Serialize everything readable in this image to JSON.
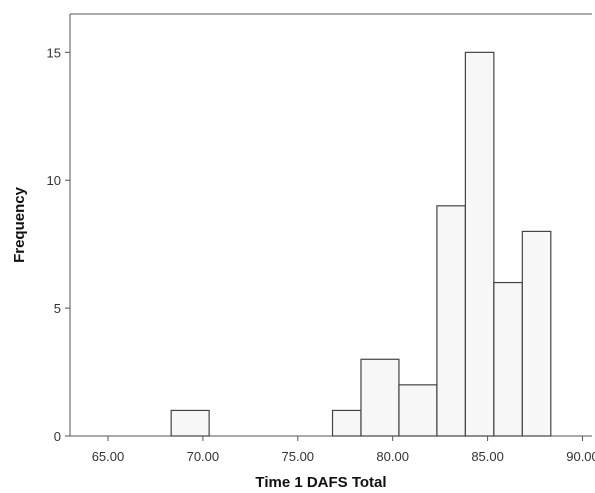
{
  "chart_data": {
    "type": "bar",
    "subtype": "histogram",
    "xlabel": "Time 1 DAFS Total",
    "ylabel": "Frequency",
    "xlim": [
      63.0,
      90.5
    ],
    "ylim": [
      0,
      16.5
    ],
    "xticks": [
      65,
      70,
      75,
      80,
      85,
      90
    ],
    "xtick_labels": [
      "65.00",
      "70.00",
      "75.00",
      "80.00",
      "85.00",
      "90.00"
    ],
    "yticks": [
      0,
      5,
      10,
      15
    ],
    "ytick_labels": [
      "0",
      "5",
      "10",
      "15"
    ],
    "bins": [
      {
        "x0": 68.33,
        "x1": 70.33,
        "count": 1
      },
      {
        "x0": 76.83,
        "x1": 78.33,
        "count": 1
      },
      {
        "x0": 78.33,
        "x1": 80.33,
        "count": 3
      },
      {
        "x0": 80.33,
        "x1": 82.33,
        "count": 2
      },
      {
        "x0": 82.33,
        "x1": 83.83,
        "count": 9
      },
      {
        "x0": 83.83,
        "x1": 85.33,
        "count": 15
      },
      {
        "x0": 85.33,
        "x1": 86.83,
        "count": 6
      },
      {
        "x0": 86.83,
        "x1": 88.33,
        "count": 8
      }
    ],
    "grid": false,
    "legend": "none",
    "bar_fill": "#f7f7f7",
    "bar_stroke": "#444444"
  }
}
